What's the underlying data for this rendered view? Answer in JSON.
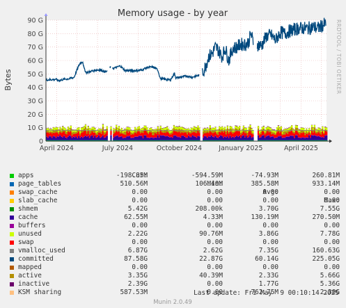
{
  "chart_data": {
    "type": "area",
    "title": "Memory usage - by year",
    "ylabel": "Bytes",
    "side_text": "RRDTOOL / TOBI OETIKER",
    "x_ticks": [
      "April 2024",
      "July 2024",
      "October 2024",
      "January 2025",
      "April 2025"
    ],
    "y_ticks": [
      "0",
      "10 G",
      "20 G",
      "30 G",
      "40 G",
      "50 G",
      "60 G",
      "70 G",
      "80 G",
      "90 G"
    ],
    "ylim": [
      0,
      90
    ],
    "y_unit": "G",
    "grid": true,
    "x_range": [
      "2024-03-16",
      "2025-05-09"
    ],
    "gaps": [
      [
        "2024-06-16",
        "2024-06-19"
      ],
      [
        "2024-06-21",
        "2024-06-23"
      ],
      [
        "2024-10-31",
        "2024-11-04"
      ],
      [
        "2025-01-20",
        "2025-01-25"
      ]
    ],
    "committed": [
      [
        "2024-03-16",
        45.5
      ],
      [
        "2024-03-31",
        46
      ],
      [
        "2024-04-04",
        45
      ],
      [
        "2024-04-12",
        46
      ],
      [
        "2024-04-20",
        46.5
      ],
      [
        "2024-04-27",
        47.5
      ],
      [
        "2024-05-03",
        55
      ],
      [
        "2024-05-06",
        58
      ],
      [
        "2024-05-10",
        59
      ],
      [
        "2024-05-12",
        54
      ],
      [
        "2024-05-15",
        51
      ],
      [
        "2024-05-23",
        52
      ],
      [
        "2024-05-31",
        53
      ],
      [
        "2024-06-06",
        53
      ],
      [
        "2024-06-10",
        52
      ],
      [
        "2024-06-15",
        51.5
      ],
      [
        "2024-06-19",
        55
      ],
      [
        "2024-06-21",
        55
      ],
      [
        "2024-06-23",
        54
      ],
      [
        "2024-06-30",
        55
      ],
      [
        "2024-07-05",
        56
      ],
      [
        "2024-07-12",
        52.5
      ],
      [
        "2024-07-31",
        52.5
      ],
      [
        "2024-08-06",
        53
      ],
      [
        "2024-08-15",
        55
      ],
      [
        "2024-08-24",
        55
      ],
      [
        "2024-08-30",
        53
      ],
      [
        "2024-09-03",
        46.5
      ],
      [
        "2024-09-10",
        46
      ],
      [
        "2024-09-18",
        45.5
      ],
      [
        "2024-09-24",
        50.5
      ],
      [
        "2024-09-26",
        47
      ],
      [
        "2024-10-02",
        47.5
      ],
      [
        "2024-10-12",
        48.5
      ],
      [
        "2024-10-20",
        47.5
      ],
      [
        "2024-10-27",
        48.5
      ],
      [
        "2024-10-31",
        49
      ],
      [
        "2024-11-04",
        50
      ],
      [
        "2024-11-08",
        54
      ],
      [
        "2024-11-14",
        63
      ],
      [
        "2024-11-19",
        65
      ],
      [
        "2024-11-24",
        70
      ],
      [
        "2024-11-28",
        68
      ],
      [
        "2024-12-04",
        63
      ],
      [
        "2024-12-09",
        69
      ],
      [
        "2024-12-14",
        60
      ],
      [
        "2024-12-20",
        69
      ],
      [
        "2024-12-26",
        70
      ],
      [
        "2025-01-01",
        72
      ],
      [
        "2025-01-09",
        72
      ],
      [
        "2025-01-13",
        74
      ],
      [
        "2025-01-16",
        80
      ],
      [
        "2025-01-20",
        73
      ],
      [
        "2025-01-25",
        72
      ],
      [
        "2025-02-01",
        71
      ],
      [
        "2025-02-08",
        78
      ],
      [
        "2025-02-15",
        79
      ],
      [
        "2025-02-22",
        75
      ],
      [
        "2025-03-01",
        81
      ],
      [
        "2025-03-08",
        80
      ],
      [
        "2025-03-15",
        82
      ],
      [
        "2025-03-22",
        83
      ],
      [
        "2025-03-29",
        84
      ],
      [
        "2025-04-05",
        84
      ],
      [
        "2025-04-12",
        84
      ],
      [
        "2025-04-19",
        85
      ],
      [
        "2025-04-26",
        84
      ],
      [
        "2025-05-03",
        86
      ],
      [
        "2025-05-08",
        87.5
      ]
    ],
    "committed_noise": 5,
    "stack": {
      "apps": 0.5,
      "cache": 0.4,
      "inactive": 2.2,
      "unused": 2.5,
      "mapped": 0.6,
      "active": 1.5
    },
    "colors": {
      "apps": "#00cc00",
      "page_tables": "#0066b3",
      "swap_cache": "#ff8000",
      "slab_cache": "#ffcc00",
      "shmem": "#330099",
      "cache": "#990099",
      "buffers": "#ccff00",
      "unused": "#ff0000",
      "swap": "#808080",
      "vmalloc_used": "#008f00",
      "committed": "#00487d",
      "mapped": "#b35a00",
      "active": "#b38f00",
      "inactive": "#6b006b",
      "ksm_sharing": "#8fb300"
    },
    "legend_header": [
      "Cur:",
      "Min:",
      "Avg:",
      "Max:"
    ],
    "legend": [
      {
        "name": "apps",
        "color": "#00cc00",
        "cur": "-198.85M",
        "min": "-594.59M",
        "avg": "-74.93M",
        "max": "260.81M"
      },
      {
        "name": "page_tables",
        "color": "#0066b3",
        "cur": "510.56M",
        "min": "106.40M",
        "avg": "385.58M",
        "max": "933.14M"
      },
      {
        "name": "swap_cache",
        "color": "#ff8000",
        "cur": "0.00",
        "min": "0.00",
        "avg": "0.00",
        "max": "0.00"
      },
      {
        "name": "slab_cache",
        "color": "#ffcc00",
        "cur": "0.00",
        "min": "0.00",
        "avg": "0.00",
        "max": "0.00"
      },
      {
        "name": "shmem",
        "color": "#008f00",
        "cur": "5.42G",
        "min": "208.00k",
        "avg": "3.70G",
        "max": "7.55G"
      },
      {
        "name": "cache",
        "color": "#330099",
        "cur": "62.55M",
        "min": "4.33M",
        "avg": "130.19M",
        "max": "270.50M"
      },
      {
        "name": "buffers",
        "color": "#990099",
        "cur": "0.00",
        "min": "0.00",
        "avg": "0.00",
        "max": "0.00"
      },
      {
        "name": "unused",
        "color": "#ccff00",
        "cur": "2.22G",
        "min": "90.76M",
        "avg": "3.86G",
        "max": "7.78G"
      },
      {
        "name": "swap",
        "color": "#ff0000",
        "cur": "0.00",
        "min": "0.00",
        "avg": "0.00",
        "max": "0.00"
      },
      {
        "name": "vmalloc_used",
        "color": "#808080",
        "cur": "6.87G",
        "min": "2.62G",
        "avg": "7.35G",
        "max": "160.63G"
      },
      {
        "name": "committed",
        "color": "#00487d",
        "cur": "87.58G",
        "min": "22.87G",
        "avg": "60.14G",
        "max": "225.05G"
      },
      {
        "name": "mapped",
        "color": "#b35a00",
        "cur": "0.00",
        "min": "0.00",
        "avg": "0.00",
        "max": "0.00"
      },
      {
        "name": "active",
        "color": "#b38f00",
        "cur": "3.35G",
        "min": "40.39M",
        "avg": "2.33G",
        "max": "5.66G"
      },
      {
        "name": "inactive",
        "color": "#6b006b",
        "cur": "2.39G",
        "min": "0.00",
        "avg": "1.77G",
        "max": "5.36G"
      },
      {
        "name": "KSM sharing",
        "color": "#ffc080",
        "cur": "587.53M",
        "min": "0.00",
        "avg": "762.75M",
        "max": "2.30G"
      }
    ],
    "last_update": "Last update: Fri May  9 00:10:14 2025",
    "munin_version": "Munin 2.0.49"
  }
}
